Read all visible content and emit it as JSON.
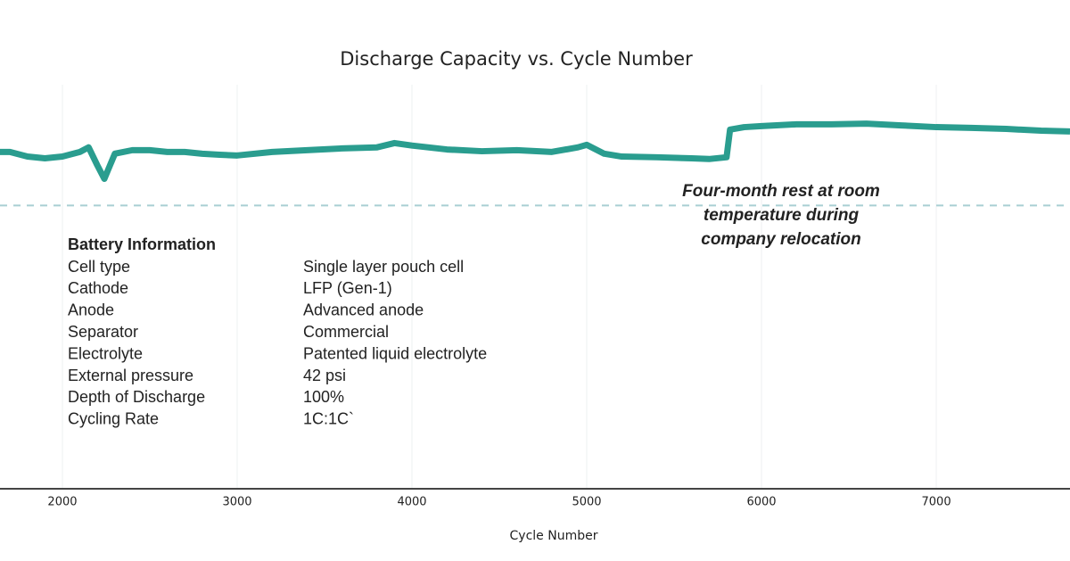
{
  "chart_data": {
    "type": "line",
    "title": "Discharge Capacity vs. Cycle Number",
    "x_label": "Cycle Number",
    "x": [
      1643,
      1700,
      1800,
      1900,
      2000,
      2100,
      2150,
      2200,
      2240,
      2300,
      2400,
      2500,
      2600,
      2700,
      2800,
      2900,
      3000,
      3200,
      3400,
      3600,
      3800,
      3900,
      4000,
      4200,
      4400,
      4600,
      4800,
      4950,
      5000,
      5100,
      5200,
      5400,
      5600,
      5700,
      5800,
      5820,
      5900,
      6000,
      6200,
      6400,
      6600,
      6800,
      7000,
      7200,
      7400,
      7600,
      7765
    ],
    "series": [
      {
        "color": "#2a9d8f",
        "values": [
          95.1,
          95.1,
          93.8,
          93.3,
          93.8,
          95.1,
          96.4,
          91.3,
          87.5,
          94.6,
          95.6,
          95.6,
          95.1,
          95.1,
          94.6,
          94.3,
          94.1,
          95.1,
          95.6,
          96.1,
          96.4,
          97.6,
          96.9,
          95.8,
          95.3,
          95.6,
          95.1,
          96.4,
          97.1,
          94.6,
          93.8,
          93.6,
          93.3,
          93.1,
          93.6,
          101.4,
          102.1,
          102.4,
          102.9,
          102.9,
          103.1,
          102.6,
          102.1,
          101.9,
          101.6,
          101.1,
          100.9
        ]
      }
    ],
    "xlim": [
      1643,
      7765
    ],
    "xticks": [
      2000,
      3000,
      4000,
      5000,
      6000,
      7000
    ],
    "ylim": [
      0,
      138
    ],
    "grid": true,
    "reference_line": 80,
    "annotation": [
      "Four-month rest at room",
      "temperature during",
      "company relocation"
    ],
    "battery_information": {
      "title": "Battery Information",
      "rows": [
        [
          "Cell type",
          "Single layer pouch cell"
        ],
        [
          "Cathode",
          "LFP (Gen-1)"
        ],
        [
          "Anode",
          "Advanced anode"
        ],
        [
          "Separator",
          "Commercial"
        ],
        [
          "Electrolyte",
          "Patented liquid electrolyte"
        ],
        [
          "External pressure",
          "42 psi"
        ],
        [
          "Depth of Discharge",
          "100%"
        ],
        [
          "Cycling Rate",
          "1C:1C`"
        ]
      ]
    }
  }
}
